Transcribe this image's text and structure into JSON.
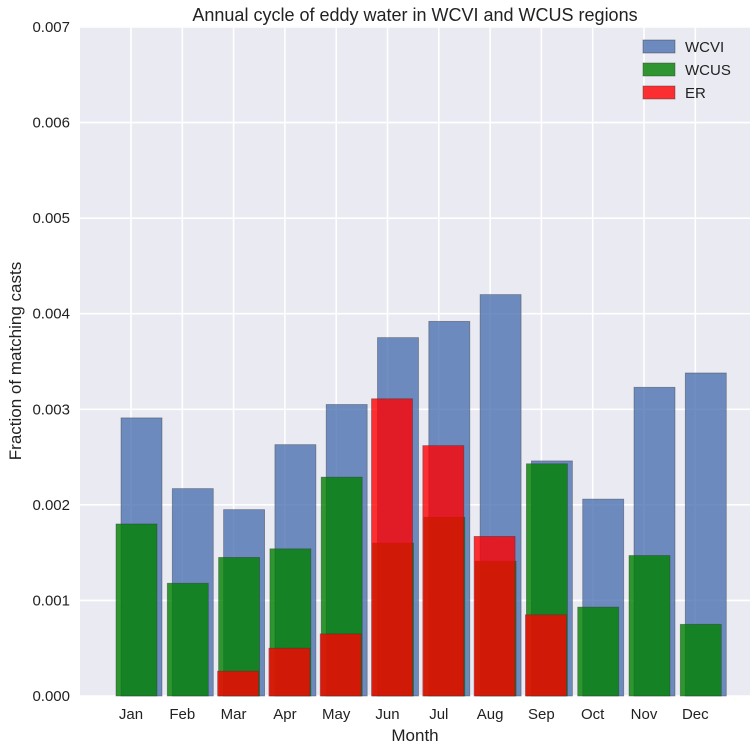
{
  "chart_data": {
    "type": "bar",
    "title": "Annual cycle of eddy water in WCVI and WCUS regions",
    "xlabel": "Month",
    "ylabel": "Fraction of matching casts",
    "ylim": [
      0,
      0.007
    ],
    "yticks": [
      0.0,
      0.001,
      0.002,
      0.003,
      0.004,
      0.005,
      0.006,
      0.007
    ],
    "ytick_labels": [
      "0.000",
      "0.001",
      "0.002",
      "0.003",
      "0.004",
      "0.005",
      "0.006",
      "0.007"
    ],
    "categories": [
      "Jan",
      "Feb",
      "Mar",
      "Apr",
      "May",
      "Jun",
      "Jul",
      "Aug",
      "Sep",
      "Oct",
      "Nov",
      "Dec"
    ],
    "grid": true,
    "legend_position": "top-right",
    "series": [
      {
        "name": "WCVI",
        "color": "#4c72b0",
        "values": [
          0.00291,
          0.00217,
          0.00195,
          0.00263,
          0.00305,
          0.00375,
          0.00392,
          0.0042,
          0.00246,
          0.00206,
          0.00323,
          0.00338
        ]
      },
      {
        "name": "WCUS",
        "color": "#008000",
        "values": [
          0.0018,
          0.00118,
          0.00145,
          0.00154,
          0.00229,
          0.0016,
          0.00187,
          0.00141,
          0.00243,
          0.00093,
          0.00147,
          0.00075
        ]
      },
      {
        "name": "ER",
        "color": "#ff0000",
        "values": [
          0,
          0,
          0.00026,
          0.0005,
          0.00065,
          0.00311,
          0.00262,
          0.00167,
          0.00085,
          0,
          0,
          0
        ]
      }
    ]
  }
}
